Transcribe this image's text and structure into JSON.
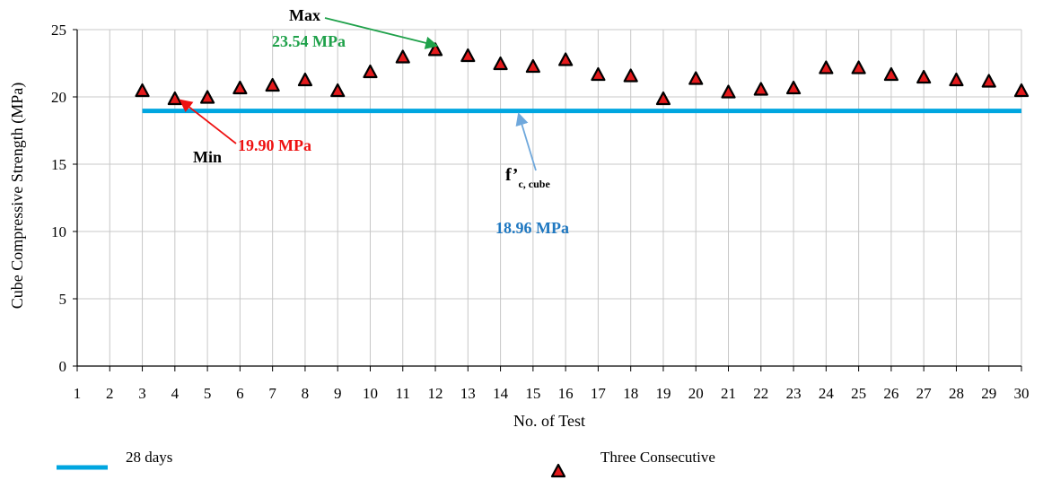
{
  "chart_data": {
    "type": "scatter",
    "xlabel": "No. of Test",
    "ylabel": "Cube Compressive Strength (MPa)",
    "xlim": [
      1,
      30
    ],
    "ylim": [
      0,
      25
    ],
    "x_ticks": [
      1,
      2,
      3,
      4,
      5,
      6,
      7,
      8,
      9,
      10,
      11,
      12,
      13,
      14,
      15,
      16,
      17,
      18,
      19,
      20,
      21,
      22,
      23,
      24,
      25,
      26,
      27,
      28,
      29,
      30
    ],
    "y_ticks": [
      0,
      5,
      10,
      15,
      20,
      25
    ],
    "grid": true,
    "series": [
      {
        "name": "Three Consecutive",
        "marker": "triangle",
        "color": "#e41a1c",
        "edge_color": "#000000",
        "x": [
          3,
          4,
          5,
          6,
          7,
          8,
          9,
          10,
          11,
          12,
          13,
          14,
          15,
          16,
          17,
          18,
          19,
          20,
          21,
          22,
          23,
          24,
          25,
          26,
          27,
          28,
          29,
          30
        ],
        "y": [
          20.5,
          19.9,
          20.0,
          20.7,
          20.9,
          21.3,
          20.5,
          21.9,
          23.0,
          23.54,
          23.1,
          22.5,
          22.3,
          22.8,
          21.7,
          21.6,
          19.9,
          21.4,
          20.4,
          20.6,
          20.7,
          22.2,
          22.2,
          21.7,
          21.5,
          21.3,
          21.2,
          20.5
        ]
      },
      {
        "name": "28 days",
        "type": "line",
        "color": "#00a6e0",
        "x": [
          3,
          30
        ],
        "y": [
          18.96,
          18.96
        ]
      }
    ],
    "legend": {
      "placement": "bottom",
      "items": [
        {
          "label": "28 days",
          "symbol": "line",
          "color": "#00a6e0"
        },
        {
          "label": "Three Consecutive",
          "symbol": "triangle",
          "color": "#e41a1c"
        }
      ]
    },
    "annotations": {
      "max": {
        "label": "Max",
        "value_label": "23.54 MPa",
        "color": "#1fa14a",
        "target": [
          12,
          23.8
        ]
      },
      "min": {
        "label": "Min",
        "value_label": "19.90 MPa",
        "color": "#ee1111",
        "target": [
          4,
          19.9
        ]
      },
      "fc": {
        "label_main": "f’",
        "label_sub": "c, cube",
        "value_label": "18.96 MPa",
        "color": "#1f78c1",
        "arrow_color": "#6fa8dc",
        "target": [
          14.5,
          18.96
        ]
      }
    }
  }
}
